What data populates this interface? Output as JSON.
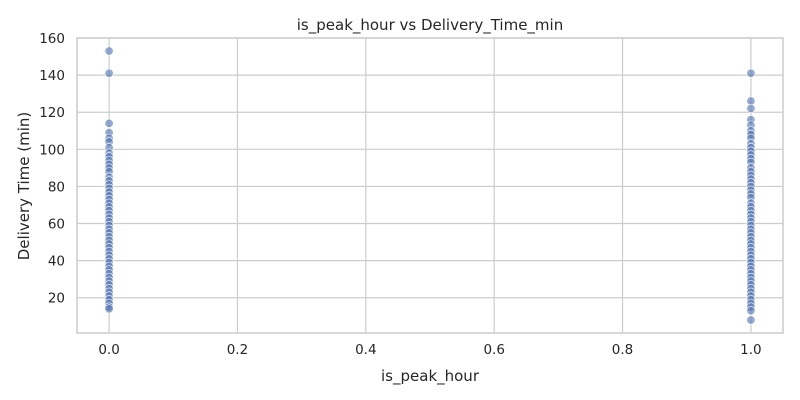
{
  "chart_data": {
    "type": "scatter",
    "title": "is_peak_hour vs Delivery_Time_min",
    "xlabel": "is_peak_hour",
    "ylabel": "Delivery Time (min)",
    "xlim": [
      -0.05,
      1.05
    ],
    "ylim": [
      1,
      160
    ],
    "xticks": [
      "0.0",
      "0.2",
      "0.4",
      "0.6",
      "0.8",
      "1.0"
    ],
    "yticks": [
      "20",
      "40",
      "60",
      "80",
      "100",
      "120",
      "140",
      "160"
    ],
    "grid": true,
    "point_color": "#4c72b0",
    "series": [
      {
        "x": 0,
        "y": [
          153,
          141,
          114,
          109,
          106,
          104,
          101,
          98,
          96,
          94,
          92,
          90,
          88,
          85,
          83,
          81,
          79,
          77,
          75,
          73,
          71,
          69,
          67,
          65,
          63,
          61,
          59,
          57,
          55,
          53,
          51,
          49,
          47,
          45,
          43,
          41,
          39,
          37,
          35,
          33,
          31,
          29,
          27,
          25,
          23,
          21,
          19,
          17,
          15,
          14
        ]
      },
      {
        "x": 1,
        "y": [
          141,
          126,
          122,
          116,
          113,
          110,
          108,
          106,
          103,
          101,
          99,
          97,
          95,
          93,
          90,
          88,
          86,
          84,
          82,
          80,
          78,
          76,
          74,
          71,
          69,
          67,
          65,
          63,
          61,
          59,
          57,
          55,
          53,
          51,
          49,
          47,
          45,
          43,
          41,
          39,
          37,
          35,
          33,
          31,
          29,
          27,
          25,
          23,
          21,
          19,
          17,
          15,
          13,
          8
        ]
      }
    ]
  }
}
